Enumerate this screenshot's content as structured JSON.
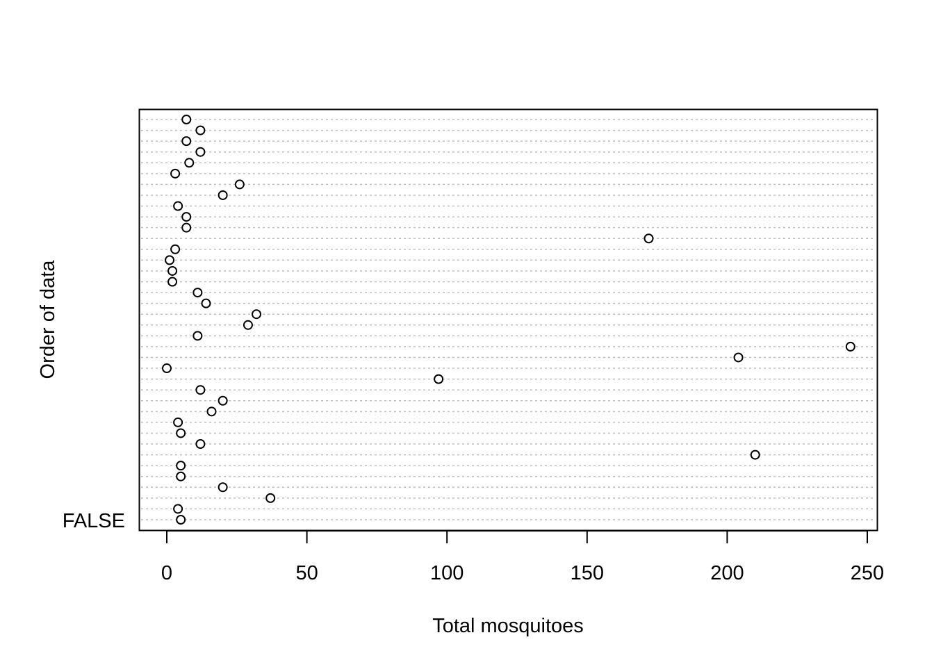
{
  "chart_data": {
    "type": "scatter",
    "subtype": "dotchart",
    "title": "",
    "xlabel": "Total mosquitoes",
    "ylabel": "Order of data",
    "xlim": [
      -10,
      253
    ],
    "xticks": [
      0,
      50,
      100,
      150,
      200,
      250
    ],
    "xtick_labels": [
      "0",
      "50",
      "100",
      "150",
      "200",
      "250"
    ],
    "ylabels_shown": [
      "FALSE"
    ],
    "grid": "dotted horizontal lines per observation",
    "point_style": "open circle",
    "colors": {
      "points": "#000000",
      "gridlines": "#bebebe",
      "frame": "#000000"
    },
    "values_bottom_to_top": [
      5,
      4,
      37,
      20,
      5,
      5,
      210,
      12,
      5,
      4,
      16,
      20,
      12,
      97,
      0,
      204,
      244,
      11,
      29,
      32,
      14,
      11,
      2,
      2,
      1,
      3,
      172,
      7,
      7,
      4,
      20,
      26,
      3,
      8,
      12,
      7,
      12,
      7
    ]
  }
}
